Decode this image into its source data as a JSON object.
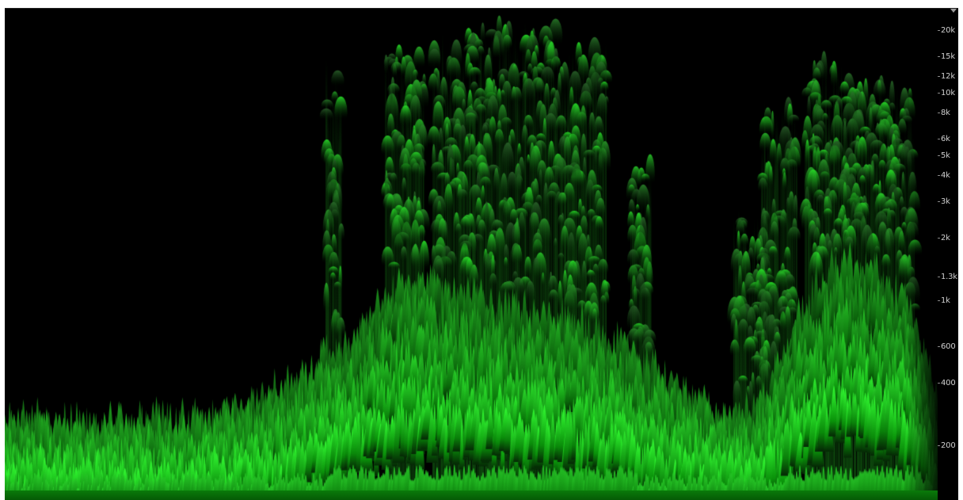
{
  "spectrogram": {
    "frequency_scale": {
      "scale": "logarithmic",
      "ticks": [
        {
          "label": "20k",
          "hz": 20000
        },
        {
          "label": "15k",
          "hz": 15000
        },
        {
          "label": "12k",
          "hz": 12000
        },
        {
          "label": "10k",
          "hz": 10000
        },
        {
          "label": "8k",
          "hz": 8000
        },
        {
          "label": "6k",
          "hz": 6000
        },
        {
          "label": "5k",
          "hz": 5000
        },
        {
          "label": "4k",
          "hz": 4000
        },
        {
          "label": "3k",
          "hz": 3000
        },
        {
          "label": "2k",
          "hz": 2000
        },
        {
          "label": "1.3k",
          "hz": 1300
        },
        {
          "label": "1k",
          "hz": 1000
        },
        {
          "label": "600",
          "hz": 600
        },
        {
          "label": "400",
          "hz": 400
        },
        {
          "label": "200",
          "hz": 200
        }
      ]
    },
    "colors": {
      "background": "#000000",
      "peak": "#2dff2d",
      "mid": "#14b814",
      "dark": "#063806",
      "label": "#cfcfcf"
    },
    "menu_icon": "dropdown-arrow-icon"
  }
}
